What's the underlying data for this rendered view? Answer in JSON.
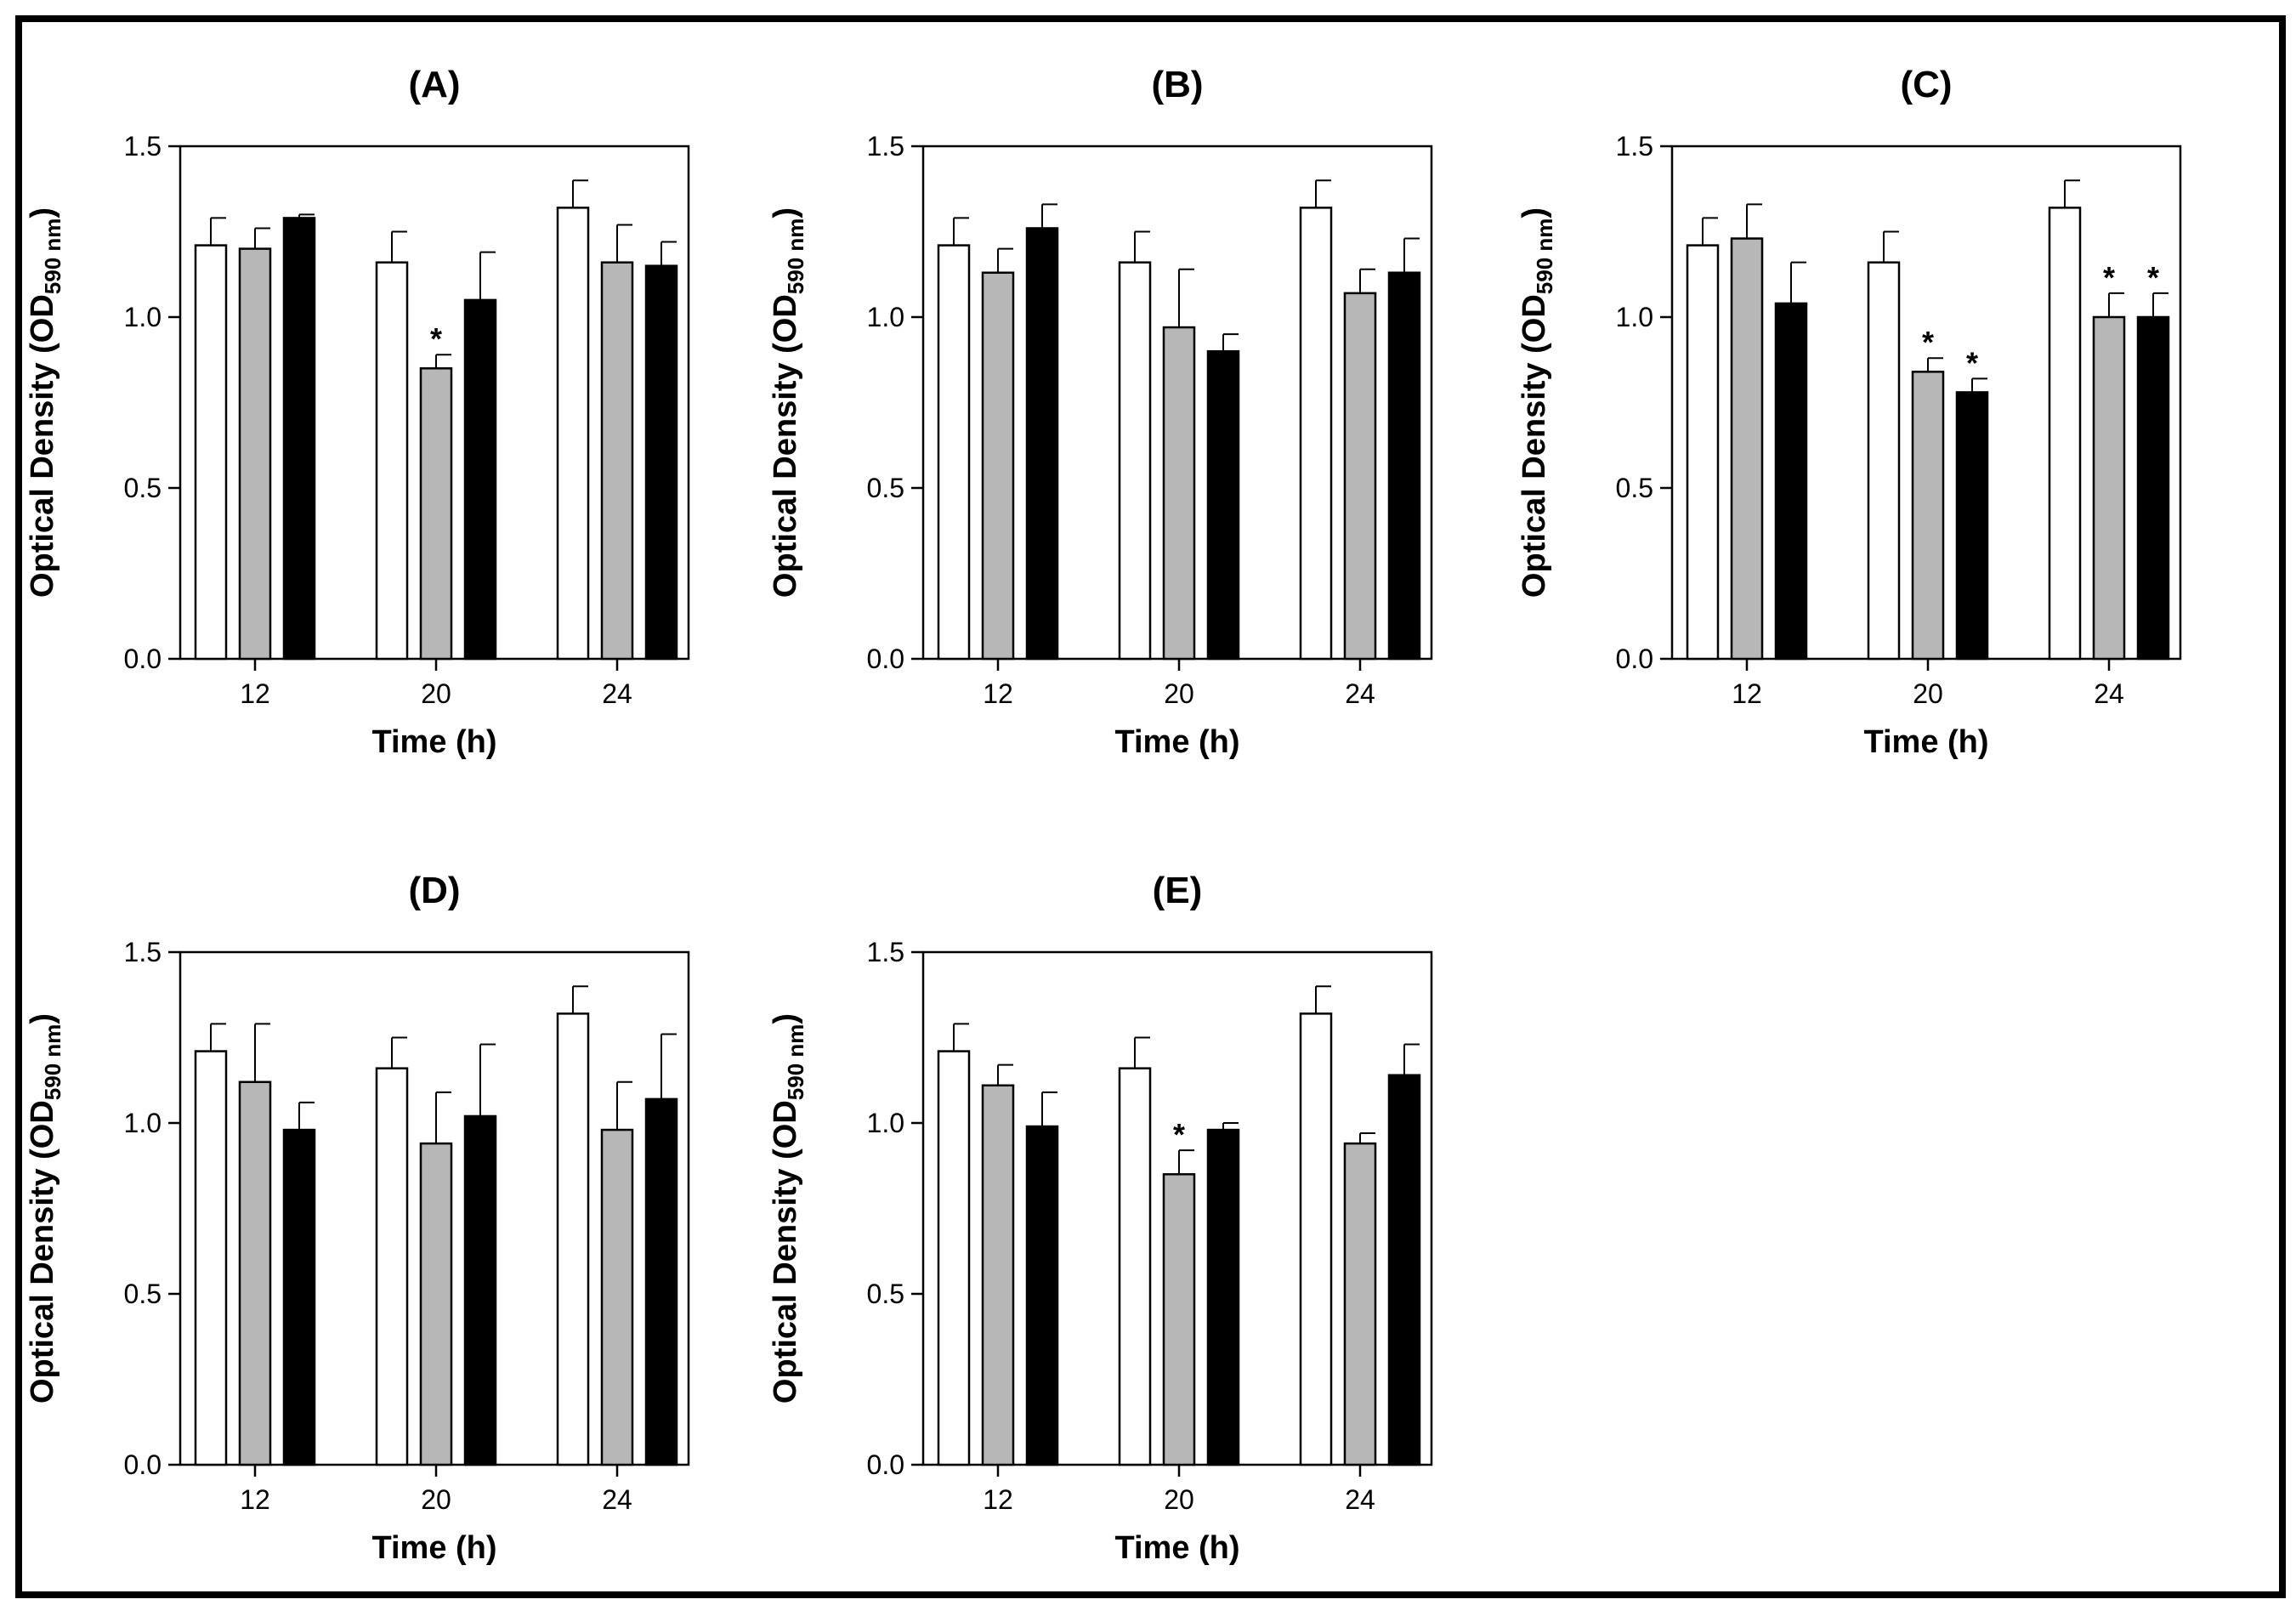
{
  "chart_data": [
    {
      "type": "bar",
      "title": "(A)",
      "xlabel": "Time (h)",
      "ylabel": "Optical Density (OD590 nm)",
      "ylabel_main": "Optical Density (OD",
      "ylabel_sub": "590 nm",
      "ylabel_close": ")",
      "ylim": [
        0,
        1.5
      ],
      "yticks": [
        "0.0",
        "0.5",
        "1.0",
        "1.5"
      ],
      "categories": [
        "12",
        "20",
        "24"
      ],
      "series": [
        {
          "name": "white",
          "color": "#ffffff",
          "values": [
            1.21,
            1.16,
            1.32
          ],
          "errors": [
            0.08,
            0.09,
            0.08
          ],
          "sig": [
            false,
            false,
            false
          ]
        },
        {
          "name": "grey",
          "color": "#b7b7b7",
          "values": [
            1.2,
            0.85,
            1.16
          ],
          "errors": [
            0.06,
            0.04,
            0.11
          ],
          "sig": [
            false,
            true,
            false
          ]
        },
        {
          "name": "black",
          "color": "#000000",
          "values": [
            1.29,
            1.05,
            1.15
          ],
          "errors": [
            0.01,
            0.14,
            0.07
          ],
          "sig": [
            false,
            false,
            false
          ]
        }
      ]
    },
    {
      "type": "bar",
      "title": "(B)",
      "xlabel": "Time (h)",
      "ylabel": "Optical Density (OD590 nm)",
      "ylabel_main": "Optical Density (OD",
      "ylabel_sub": "590 nm",
      "ylabel_close": ")",
      "ylim": [
        0,
        1.5
      ],
      "yticks": [
        "0.0",
        "0.5",
        "1.0",
        "1.5"
      ],
      "categories": [
        "12",
        "20",
        "24"
      ],
      "series": [
        {
          "name": "white",
          "color": "#ffffff",
          "values": [
            1.21,
            1.16,
            1.32
          ],
          "errors": [
            0.08,
            0.09,
            0.08
          ],
          "sig": [
            false,
            false,
            false
          ]
        },
        {
          "name": "grey",
          "color": "#b7b7b7",
          "values": [
            1.13,
            0.97,
            1.07
          ],
          "errors": [
            0.07,
            0.17,
            0.07
          ],
          "sig": [
            false,
            false,
            false
          ]
        },
        {
          "name": "black",
          "color": "#000000",
          "values": [
            1.26,
            0.9,
            1.13
          ],
          "errors": [
            0.07,
            0.05,
            0.1
          ],
          "sig": [
            false,
            false,
            false
          ]
        }
      ]
    },
    {
      "type": "bar",
      "title": "(C)",
      "xlabel": "Time (h)",
      "ylabel": "Optical Density (OD590 nm)",
      "ylabel_main": "Optical Density (OD",
      "ylabel_sub": "590 nm",
      "ylabel_close": ")",
      "ylim": [
        0,
        1.5
      ],
      "yticks": [
        "0.0",
        "0.5",
        "1.0",
        "1.5"
      ],
      "categories": [
        "12",
        "20",
        "24"
      ],
      "series": [
        {
          "name": "white",
          "color": "#ffffff",
          "values": [
            1.21,
            1.16,
            1.32
          ],
          "errors": [
            0.08,
            0.09,
            0.08
          ],
          "sig": [
            false,
            false,
            false
          ]
        },
        {
          "name": "grey",
          "color": "#b7b7b7",
          "values": [
            1.23,
            0.84,
            1.0
          ],
          "errors": [
            0.1,
            0.04,
            0.07
          ],
          "sig": [
            false,
            true,
            true
          ]
        },
        {
          "name": "black",
          "color": "#000000",
          "values": [
            1.04,
            0.78,
            1.0
          ],
          "errors": [
            0.12,
            0.04,
            0.07
          ],
          "sig": [
            false,
            true,
            true
          ]
        }
      ]
    },
    {
      "type": "bar",
      "title": "(D)",
      "xlabel": "Time (h)",
      "ylabel": "Optical Density (OD590 nm)",
      "ylabel_main": "Optical Density (OD",
      "ylabel_sub": "590 nm",
      "ylabel_close": ")",
      "ylim": [
        0,
        1.5
      ],
      "yticks": [
        "0.0",
        "0.5",
        "1.0",
        "1.5"
      ],
      "categories": [
        "12",
        "20",
        "24"
      ],
      "series": [
        {
          "name": "white",
          "color": "#ffffff",
          "values": [
            1.21,
            1.16,
            1.32
          ],
          "errors": [
            0.08,
            0.09,
            0.08
          ],
          "sig": [
            false,
            false,
            false
          ]
        },
        {
          "name": "grey",
          "color": "#b7b7b7",
          "values": [
            1.12,
            0.94,
            0.98
          ],
          "errors": [
            0.17,
            0.15,
            0.14
          ],
          "sig": [
            false,
            false,
            false
          ]
        },
        {
          "name": "black",
          "color": "#000000",
          "values": [
            0.98,
            1.02,
            1.07
          ],
          "errors": [
            0.08,
            0.21,
            0.19
          ],
          "sig": [
            false,
            false,
            false
          ]
        }
      ]
    },
    {
      "type": "bar",
      "title": "(E)",
      "xlabel": "Time (h)",
      "ylabel": "Optical Density (OD590 nm)",
      "ylabel_main": "Optical Density (OD",
      "ylabel_sub": "590 nm",
      "ylabel_close": ")",
      "ylim": [
        0,
        1.5
      ],
      "yticks": [
        "0.0",
        "0.5",
        "1.0",
        "1.5"
      ],
      "categories": [
        "12",
        "20",
        "24"
      ],
      "series": [
        {
          "name": "white",
          "color": "#ffffff",
          "values": [
            1.21,
            1.16,
            1.32
          ],
          "errors": [
            0.08,
            0.09,
            0.08
          ],
          "sig": [
            false,
            false,
            false
          ]
        },
        {
          "name": "grey",
          "color": "#b7b7b7",
          "values": [
            1.11,
            0.85,
            0.94
          ],
          "errors": [
            0.06,
            0.07,
            0.03
          ],
          "sig": [
            false,
            true,
            false
          ]
        },
        {
          "name": "black",
          "color": "#000000",
          "values": [
            0.99,
            0.98,
            1.14
          ],
          "errors": [
            0.1,
            0.02,
            0.09
          ],
          "sig": [
            false,
            false,
            false
          ]
        }
      ]
    }
  ],
  "significance_marker": "*"
}
